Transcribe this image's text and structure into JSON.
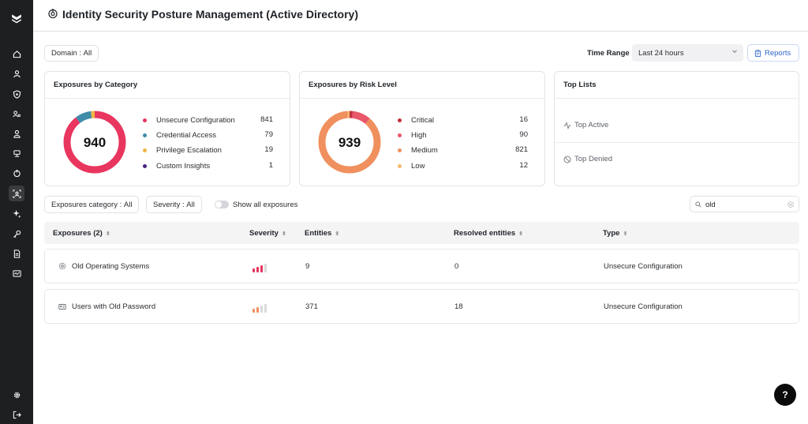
{
  "header": {
    "title": "Identity Security Posture Management (Active Directory)"
  },
  "filters": {
    "domain_label": "Domain :",
    "domain_value": "All",
    "time_range_label": "Time Range",
    "time_range_value": "Last 24 hours",
    "reports_label": "Reports"
  },
  "category_card": {
    "title": "Exposures by Category",
    "total": "940",
    "items": [
      {
        "label": "Unsecure Configuration",
        "value": "841",
        "color": "#e8365f"
      },
      {
        "label": "Credential Access",
        "value": "79",
        "color": "#3f8ba8"
      },
      {
        "label": "Privilege Escalation",
        "value": "19",
        "color": "#f0b545"
      },
      {
        "label": "Custom Insights",
        "value": "1",
        "color": "#4a2380"
      }
    ]
  },
  "risk_card": {
    "title": "Exposures by Risk Level",
    "total": "939",
    "items": [
      {
        "label": "Critical",
        "value": "16",
        "color": "#c1303f"
      },
      {
        "label": "High",
        "value": "90",
        "color": "#e8576a"
      },
      {
        "label": "Medium",
        "value": "821",
        "color": "#f0905e"
      },
      {
        "label": "Low",
        "value": "12",
        "color": "#f4b86a"
      }
    ]
  },
  "top_lists": {
    "title": "Top Lists",
    "items": [
      {
        "label": "Top Active"
      },
      {
        "label": "Top Denied"
      }
    ]
  },
  "table_filters": {
    "category_label": "Exposures category :",
    "category_value": "All",
    "severity_label": "Severity :",
    "severity_value": "All",
    "show_all_label": "Show all exposures",
    "search_value": "old"
  },
  "table": {
    "columns": [
      "Exposures (2)",
      "Severity",
      "Entities",
      "Resolved entities",
      "Type"
    ],
    "rows": [
      {
        "name": "Old Operating Systems",
        "severity_level": 3,
        "entities": "9",
        "resolved": "0",
        "type": "Unsecure Configuration"
      },
      {
        "name": "Users with Old Password",
        "severity_level": 2,
        "entities": "371",
        "resolved": "18",
        "type": "Unsecure Configuration"
      }
    ]
  },
  "help_label": "?"
}
